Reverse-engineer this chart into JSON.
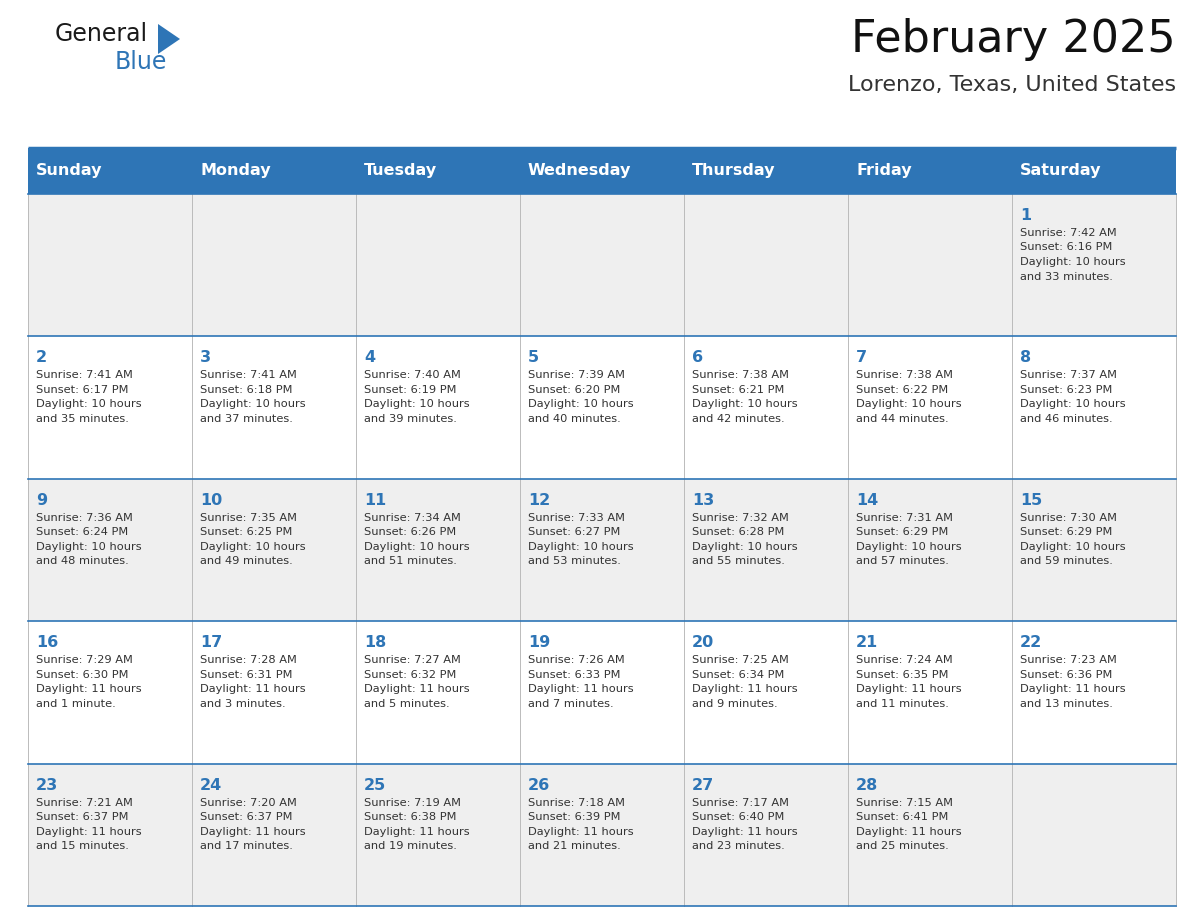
{
  "title": "February 2025",
  "subtitle": "Lorenzo, Texas, United States",
  "header_bg_color": "#2E75B6",
  "header_text_color": "#FFFFFF",
  "cell_bg_white": "#FFFFFF",
  "cell_bg_gray": "#EFEFEF",
  "day_number_color": "#2E75B6",
  "text_color": "#333333",
  "border_color": "#2E75B6",
  "days_of_week": [
    "Sunday",
    "Monday",
    "Tuesday",
    "Wednesday",
    "Thursday",
    "Friday",
    "Saturday"
  ],
  "weeks": [
    [
      {
        "day": null,
        "sunrise": null,
        "sunset": null,
        "daylight": null
      },
      {
        "day": null,
        "sunrise": null,
        "sunset": null,
        "daylight": null
      },
      {
        "day": null,
        "sunrise": null,
        "sunset": null,
        "daylight": null
      },
      {
        "day": null,
        "sunrise": null,
        "sunset": null,
        "daylight": null
      },
      {
        "day": null,
        "sunrise": null,
        "sunset": null,
        "daylight": null
      },
      {
        "day": null,
        "sunrise": null,
        "sunset": null,
        "daylight": null
      },
      {
        "day": 1,
        "sunrise": "7:42 AM",
        "sunset": "6:16 PM",
        "daylight": "10 hours\nand 33 minutes."
      }
    ],
    [
      {
        "day": 2,
        "sunrise": "7:41 AM",
        "sunset": "6:17 PM",
        "daylight": "10 hours\nand 35 minutes."
      },
      {
        "day": 3,
        "sunrise": "7:41 AM",
        "sunset": "6:18 PM",
        "daylight": "10 hours\nand 37 minutes."
      },
      {
        "day": 4,
        "sunrise": "7:40 AM",
        "sunset": "6:19 PM",
        "daylight": "10 hours\nand 39 minutes."
      },
      {
        "day": 5,
        "sunrise": "7:39 AM",
        "sunset": "6:20 PM",
        "daylight": "10 hours\nand 40 minutes."
      },
      {
        "day": 6,
        "sunrise": "7:38 AM",
        "sunset": "6:21 PM",
        "daylight": "10 hours\nand 42 minutes."
      },
      {
        "day": 7,
        "sunrise": "7:38 AM",
        "sunset": "6:22 PM",
        "daylight": "10 hours\nand 44 minutes."
      },
      {
        "day": 8,
        "sunrise": "7:37 AM",
        "sunset": "6:23 PM",
        "daylight": "10 hours\nand 46 minutes."
      }
    ],
    [
      {
        "day": 9,
        "sunrise": "7:36 AM",
        "sunset": "6:24 PM",
        "daylight": "10 hours\nand 48 minutes."
      },
      {
        "day": 10,
        "sunrise": "7:35 AM",
        "sunset": "6:25 PM",
        "daylight": "10 hours\nand 49 minutes."
      },
      {
        "day": 11,
        "sunrise": "7:34 AM",
        "sunset": "6:26 PM",
        "daylight": "10 hours\nand 51 minutes."
      },
      {
        "day": 12,
        "sunrise": "7:33 AM",
        "sunset": "6:27 PM",
        "daylight": "10 hours\nand 53 minutes."
      },
      {
        "day": 13,
        "sunrise": "7:32 AM",
        "sunset": "6:28 PM",
        "daylight": "10 hours\nand 55 minutes."
      },
      {
        "day": 14,
        "sunrise": "7:31 AM",
        "sunset": "6:29 PM",
        "daylight": "10 hours\nand 57 minutes."
      },
      {
        "day": 15,
        "sunrise": "7:30 AM",
        "sunset": "6:29 PM",
        "daylight": "10 hours\nand 59 minutes."
      }
    ],
    [
      {
        "day": 16,
        "sunrise": "7:29 AM",
        "sunset": "6:30 PM",
        "daylight": "11 hours\nand 1 minute."
      },
      {
        "day": 17,
        "sunrise": "7:28 AM",
        "sunset": "6:31 PM",
        "daylight": "11 hours\nand 3 minutes."
      },
      {
        "day": 18,
        "sunrise": "7:27 AM",
        "sunset": "6:32 PM",
        "daylight": "11 hours\nand 5 minutes."
      },
      {
        "day": 19,
        "sunrise": "7:26 AM",
        "sunset": "6:33 PM",
        "daylight": "11 hours\nand 7 minutes."
      },
      {
        "day": 20,
        "sunrise": "7:25 AM",
        "sunset": "6:34 PM",
        "daylight": "11 hours\nand 9 minutes."
      },
      {
        "day": 21,
        "sunrise": "7:24 AM",
        "sunset": "6:35 PM",
        "daylight": "11 hours\nand 11 minutes."
      },
      {
        "day": 22,
        "sunrise": "7:23 AM",
        "sunset": "6:36 PM",
        "daylight": "11 hours\nand 13 minutes."
      }
    ],
    [
      {
        "day": 23,
        "sunrise": "7:21 AM",
        "sunset": "6:37 PM",
        "daylight": "11 hours\nand 15 minutes."
      },
      {
        "day": 24,
        "sunrise": "7:20 AM",
        "sunset": "6:37 PM",
        "daylight": "11 hours\nand 17 minutes."
      },
      {
        "day": 25,
        "sunrise": "7:19 AM",
        "sunset": "6:38 PM",
        "daylight": "11 hours\nand 19 minutes."
      },
      {
        "day": 26,
        "sunrise": "7:18 AM",
        "sunset": "6:39 PM",
        "daylight": "11 hours\nand 21 minutes."
      },
      {
        "day": 27,
        "sunrise": "7:17 AM",
        "sunset": "6:40 PM",
        "daylight": "11 hours\nand 23 minutes."
      },
      {
        "day": 28,
        "sunrise": "7:15 AM",
        "sunset": "6:41 PM",
        "daylight": "11 hours\nand 25 minutes."
      },
      {
        "day": null,
        "sunrise": null,
        "sunset": null,
        "daylight": null
      }
    ]
  ],
  "logo_text1": "General",
  "logo_text2": "Blue",
  "figsize": [
    11.88,
    9.18
  ],
  "dpi": 100
}
